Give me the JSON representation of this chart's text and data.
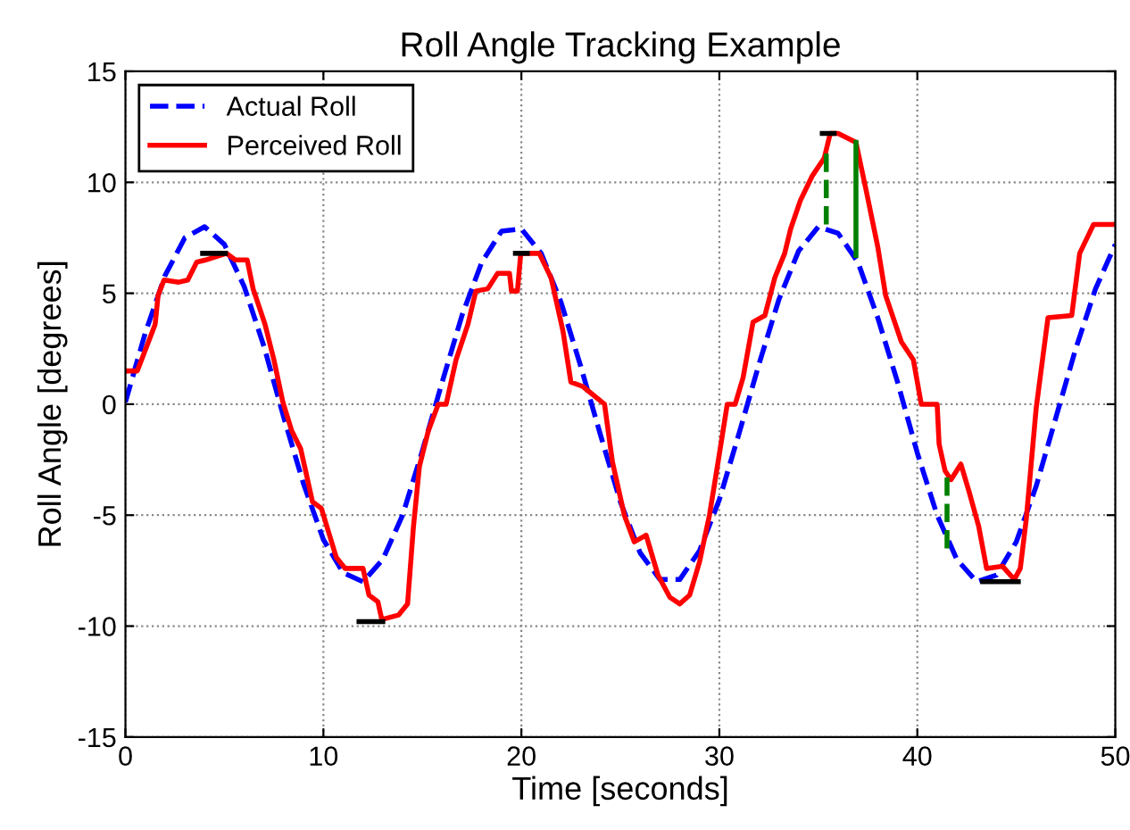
{
  "chart_data": {
    "type": "line",
    "title": "Roll Angle Tracking Example",
    "xlabel": "Time [seconds]",
    "ylabel": "Roll Angle [degrees]",
    "xlim": [
      0,
      50
    ],
    "ylim": [
      -15,
      15
    ],
    "xticks": [
      0,
      10,
      20,
      30,
      40,
      50
    ],
    "yticks": [
      -15,
      -10,
      -5,
      0,
      5,
      10,
      15
    ],
    "grid": true,
    "legend": "top left",
    "series": [
      {
        "name": "Actual Roll",
        "color": "#0000ff",
        "line_style": "dashed",
        "x": [
          0,
          1,
          2,
          3,
          4,
          5,
          6,
          7,
          8,
          9,
          10,
          11,
          12,
          13,
          14,
          15,
          16,
          17,
          18,
          19,
          20,
          21,
          22,
          23,
          24,
          25,
          26,
          27,
          28,
          29,
          30,
          31,
          32,
          33,
          34,
          35,
          36,
          37,
          38,
          39,
          40,
          41,
          42,
          43,
          44,
          45,
          46,
          47,
          48,
          49,
          50
        ],
        "values": [
          0.1,
          3.2,
          5.8,
          7.5,
          8.0,
          7.2,
          5.3,
          2.6,
          -0.6,
          -3.6,
          -6.1,
          -7.6,
          -8.0,
          -7.0,
          -5.0,
          -2.1,
          1.0,
          4.0,
          6.4,
          7.8,
          7.9,
          6.8,
          4.6,
          1.7,
          -1.4,
          -4.4,
          -6.7,
          -7.9,
          -7.9,
          -6.6,
          -4.3,
          -1.3,
          1.8,
          4.7,
          6.9,
          8.0,
          7.7,
          6.4,
          3.9,
          1.0,
          -2.2,
          -5.0,
          -7.0,
          -8.0,
          -7.7,
          -6.2,
          -3.7,
          -0.6,
          2.5,
          5.2,
          7.2
        ]
      },
      {
        "name": "Perceived Roll",
        "color": "#ff0000",
        "line_style": "solid",
        "x": [
          0,
          0.6,
          0.9,
          1.5,
          1.65,
          1.95,
          2.7,
          3.15,
          3.6,
          4.05,
          5.1,
          5.55,
          6.15,
          6.45,
          7.05,
          7.5,
          7.95,
          8.4,
          8.85,
          9.45,
          9.9,
          10.65,
          11.1,
          12.0,
          12.3,
          12.75,
          12.95,
          13.8,
          14.25,
          14.55,
          14.85,
          15.3,
          15.8,
          16.2,
          16.7,
          17.3,
          17.7,
          18.3,
          18.8,
          19.4,
          19.5,
          19.8,
          19.97,
          20.9,
          21.5,
          22.1,
          22.5,
          23.1,
          24.2,
          24.6,
          25.2,
          25.7,
          26.3,
          26.9,
          27.5,
          28.0,
          28.5,
          29.0,
          29.5,
          29.9,
          30.4,
          30.8,
          31.2,
          31.7,
          32.3,
          32.8,
          33.3,
          33.6,
          34.1,
          34.7,
          35.3,
          35.6,
          36.0,
          36.9,
          37.4,
          38.0,
          38.4,
          39.2,
          39.8,
          40.2,
          41.0,
          41.1,
          41.4,
          41.7,
          42.2,
          42.6,
          43.1,
          43.5,
          44.3,
          44.9,
          45.2,
          45.5,
          46.0,
          46.6,
          47.8,
          48.2,
          48.9,
          50.0
        ],
        "values": [
          1.5,
          1.5,
          2.2,
          3.6,
          4.9,
          5.6,
          5.5,
          5.6,
          6.4,
          6.5,
          6.8,
          6.5,
          6.5,
          5.2,
          3.6,
          2.0,
          0.1,
          -1.2,
          -2.0,
          -4.4,
          -4.7,
          -6.9,
          -7.4,
          -7.4,
          -8.6,
          -8.9,
          -9.7,
          -9.5,
          -9.0,
          -5.5,
          -2.8,
          -1.2,
          0,
          0,
          2.0,
          3.6,
          5.1,
          5.2,
          5.9,
          5.9,
          5.1,
          5.1,
          6.8,
          6.8,
          5.7,
          3.3,
          1.0,
          0.8,
          0,
          -2.6,
          -5.0,
          -6.2,
          -5.9,
          -7.7,
          -8.7,
          -9.0,
          -8.6,
          -7.1,
          -5.0,
          -2.8,
          0,
          0,
          1.2,
          3.7,
          4.0,
          5.7,
          6.8,
          7.9,
          9.2,
          10.3,
          11.1,
          12.2,
          12.2,
          11.8,
          9.7,
          7.1,
          4.9,
          2.8,
          2.0,
          0,
          0,
          -1.8,
          -3.0,
          -3.4,
          -2.7,
          -3.9,
          -5.5,
          -7.4,
          -7.3,
          -7.9,
          -7.4,
          -5.2,
          -0.2,
          3.9,
          4.0,
          6.8,
          8.1,
          8.1
        ]
      },
      {
        "color": "#000000",
        "line_style": "solid",
        "x": [
          3.9,
          5.05
        ],
        "values": [
          6.8,
          6.8
        ]
      },
      {
        "color": "#000000",
        "line_style": "solid",
        "x": [
          11.8,
          13.0
        ],
        "values": [
          -9.8,
          -9.8
        ]
      },
      {
        "color": "#000000",
        "line_style": "solid",
        "x": [
          19.7,
          20.3
        ],
        "values": [
          6.8,
          6.8
        ]
      },
      {
        "color": "#000000",
        "line_style": "solid",
        "x": [
          35.2,
          35.8
        ],
        "values": [
          12.2,
          12.2
        ]
      },
      {
        "color": "#000000",
        "line_style": "solid",
        "x": [
          43.3,
          45.1
        ],
        "values": [
          -8.0,
          -8.0
        ]
      },
      {
        "color": "#008000",
        "line_style": "dashed",
        "x": [
          35.4,
          35.4
        ],
        "values": [
          8.1,
          11.5
        ]
      },
      {
        "color": "#008000",
        "line_style": "solid",
        "x": [
          36.9,
          36.9
        ],
        "values": [
          6.7,
          11.8
        ]
      },
      {
        "color": "#008000",
        "line_style": "dashed",
        "x": [
          41.5,
          41.5
        ],
        "values": [
          -6.5,
          -3.1
        ]
      }
    ]
  }
}
